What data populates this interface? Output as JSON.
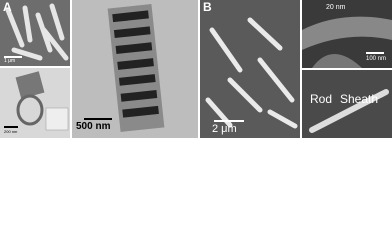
{
  "panel_a": {
    "letter": "A",
    "top_left_scale": "1 μm",
    "bottom_left_scale": "200 nm",
    "center_scale": "500 nm"
  },
  "panel_b": {
    "letter": "B",
    "main_scale": "2 μm",
    "wall_label": "20 nm",
    "top_right_scale": "100 nm",
    "rod_label": "Rod",
    "sheath_label": "Sheath"
  }
}
